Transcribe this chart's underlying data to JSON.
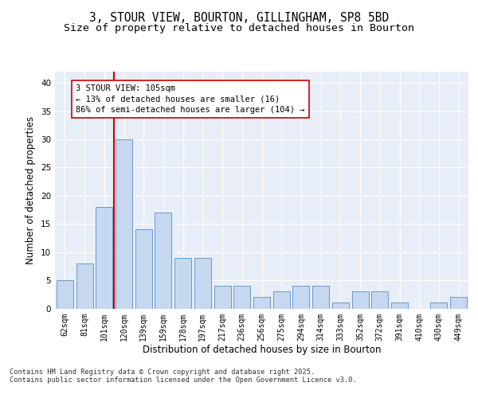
{
  "title_line1": "3, STOUR VIEW, BOURTON, GILLINGHAM, SP8 5BD",
  "title_line2": "Size of property relative to detached houses in Bourton",
  "xlabel": "Distribution of detached houses by size in Bourton",
  "ylabel": "Number of detached properties",
  "categories": [
    "62sqm",
    "81sqm",
    "101sqm",
    "120sqm",
    "139sqm",
    "159sqm",
    "178sqm",
    "197sqm",
    "217sqm",
    "236sqm",
    "256sqm",
    "275sqm",
    "294sqm",
    "314sqm",
    "333sqm",
    "352sqm",
    "372sqm",
    "391sqm",
    "410sqm",
    "430sqm",
    "449sqm"
  ],
  "values": [
    5,
    8,
    18,
    30,
    14,
    17,
    9,
    9,
    4,
    4,
    2,
    3,
    4,
    4,
    1,
    3,
    3,
    1,
    0,
    1,
    2
  ],
  "bar_color": "#c5d8f0",
  "bar_edge_color": "#5b8ec4",
  "reference_line_x": 2.5,
  "reference_line_color": "#cc0000",
  "annotation_text": "3 STOUR VIEW: 105sqm\n← 13% of detached houses are smaller (16)\n86% of semi-detached houses are larger (104) →",
  "annotation_box_color": "#ffffff",
  "annotation_box_edge": "#cc0000",
  "ylim": [
    0,
    42
  ],
  "yticks": [
    0,
    5,
    10,
    15,
    20,
    25,
    30,
    35,
    40
  ],
  "background_color": "#e8eef7",
  "footer_text": "Contains HM Land Registry data © Crown copyright and database right 2025.\nContains public sector information licensed under the Open Government Licence v3.0.",
  "title_fontsize": 10.5,
  "subtitle_fontsize": 9.5,
  "axis_label_fontsize": 8.5,
  "tick_fontsize": 7,
  "annotation_fontsize": 7.5,
  "footer_fontsize": 6.2
}
